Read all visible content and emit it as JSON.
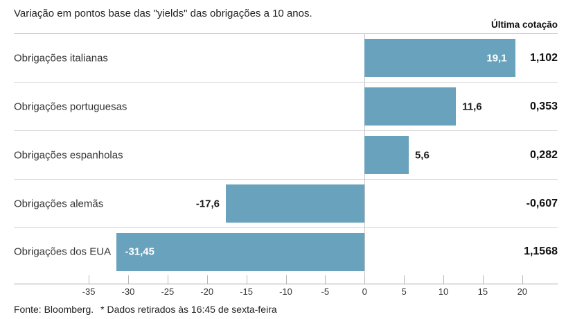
{
  "header": {
    "title": "Variação em pontos base das \"yields\" das obrigações a 10 anos.",
    "last_quote_label": "Última cotação"
  },
  "footer": {
    "source": "Fonte: Bloomberg.",
    "note": "* Dados retirados às 16:45 de sexta-feira"
  },
  "chart_data": {
    "type": "bar",
    "orientation": "horizontal",
    "title": "Variação em pontos base das \"yields\" das obrigações a 10 anos.",
    "categories": [
      "Obrigações italianas",
      "Obrigações portuguesas",
      "Obrigações espanholas",
      "Obrigações alemãs",
      "Obrigações dos EUA"
    ],
    "values": [
      19.1,
      11.6,
      5.6,
      -17.6,
      -31.45
    ],
    "value_labels": [
      "19,1",
      "11,6",
      "5,6",
      "-17,6",
      "-31,45"
    ],
    "value_label_placement": [
      "inside",
      "outside",
      "outside",
      "outside",
      "inside"
    ],
    "last_quotes": [
      "1,102",
      "0,353",
      "0,282",
      "-0,607",
      "1,1568"
    ],
    "last_quote_column_label": "Última cotação",
    "x_ticks": [
      "-35",
      "-30",
      "-25",
      "-20",
      "-15",
      "-10",
      "-5",
      "0",
      "5",
      "10",
      "15",
      "20"
    ],
    "xlim": [
      -44.5,
      24.5
    ],
    "grid": false,
    "zero_line": true,
    "bar_color": "#69a2bc"
  }
}
